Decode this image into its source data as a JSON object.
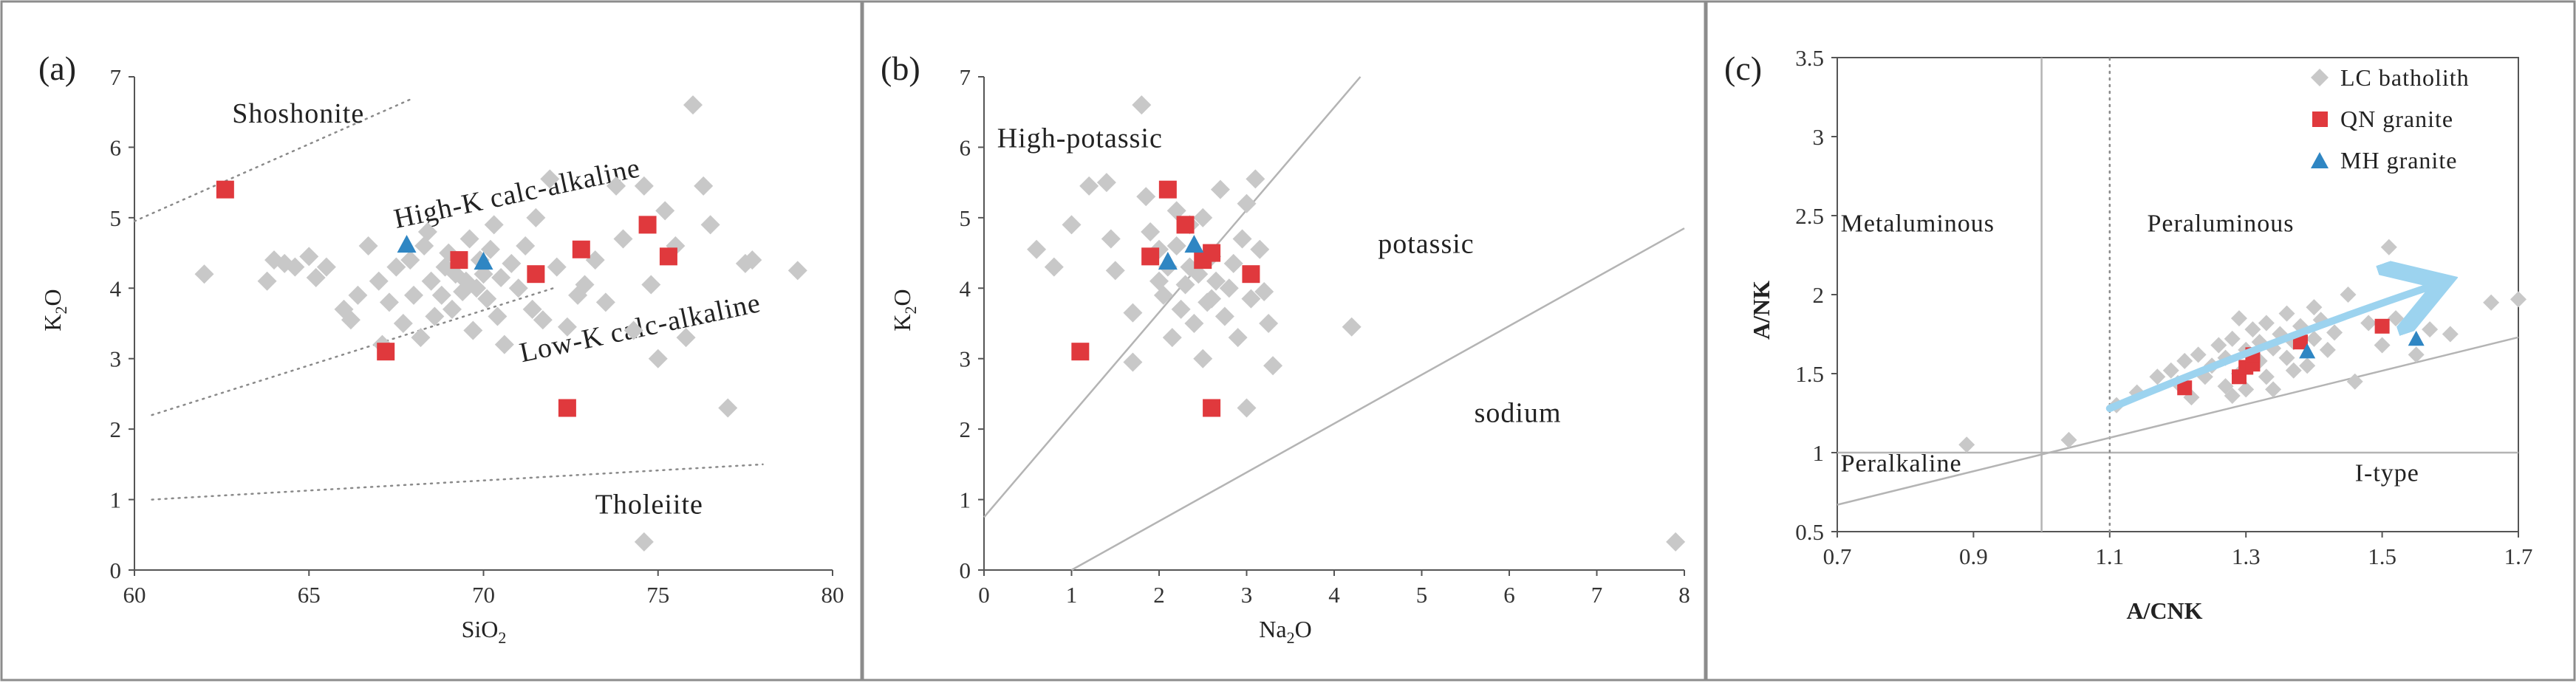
{
  "colors": {
    "lc": "#c8c8c8",
    "qn": "#e0393d",
    "mh": "#2f86c3",
    "arrow": "#9cd3ef",
    "line": "#b4b4b4",
    "frame": "#8c8c8c"
  },
  "chart_data": [
    {
      "type": "scatter",
      "panel": "(a)",
      "xlabel": "SiO",
      "xlabel_sub": "2",
      "ylabel": "K",
      "ylabel_sub": "2",
      "ylabel_tail": "O",
      "xlim": [
        60,
        80
      ],
      "ylim": [
        0,
        7
      ],
      "xticks": [
        60,
        65,
        70,
        75,
        80
      ],
      "yticks": [
        0,
        1,
        2,
        3,
        4,
        5,
        6,
        7
      ],
      "reference_lines": [
        {
          "style": "dotted",
          "points": [
            [
              60,
              4.95
            ],
            [
              68,
              6.7
            ]
          ]
        },
        {
          "style": "dotted",
          "points": [
            [
              60.5,
              2.2
            ],
            [
              72,
              4.0
            ]
          ]
        },
        {
          "style": "dotted",
          "points": [
            [
              60.5,
              1.0
            ],
            [
              78,
              1.5
            ]
          ]
        }
      ],
      "field_labels": [
        {
          "text": "Shoshonite",
          "x": 62.8,
          "y": 6.35,
          "rotate": 0
        },
        {
          "text": "High-K calc-alkaline",
          "x": 67.5,
          "y": 4.85,
          "rotate": -12
        },
        {
          "text": "Low-K calc-alkaline",
          "x": 71.1,
          "y": 2.95,
          "rotate": -12
        },
        {
          "text": "Tholeiite",
          "x": 73.2,
          "y": 0.8,
          "rotate": 0
        }
      ],
      "series": [
        {
          "name": "LC batholith",
          "marker": "diamond",
          "points": [
            [
              62,
              4.2
            ],
            [
              63.8,
              4.1
            ],
            [
              64,
              4.4
            ],
            [
              64.3,
              4.35
            ],
            [
              64.6,
              4.3
            ],
            [
              65,
              4.45
            ],
            [
              65.2,
              4.15
            ],
            [
              65.5,
              4.3
            ],
            [
              66,
              3.7
            ],
            [
              66.2,
              3.55
            ],
            [
              66.4,
              3.9
            ],
            [
              66.7,
              4.6
            ],
            [
              67,
              4.1
            ],
            [
              67.1,
              3.2
            ],
            [
              67.3,
              3.8
            ],
            [
              67.5,
              4.3
            ],
            [
              67.7,
              3.5
            ],
            [
              67.9,
              4.4
            ],
            [
              68,
              3.9
            ],
            [
              68.2,
              3.3
            ],
            [
              68.3,
              4.6
            ],
            [
              68.4,
              4.8
            ],
            [
              68.5,
              4.1
            ],
            [
              68.6,
              3.6
            ],
            [
              68.8,
              3.9
            ],
            [
              68.9,
              4.3
            ],
            [
              69,
              4.5
            ],
            [
              69.1,
              3.7
            ],
            [
              69.2,
              4.2
            ],
            [
              69.4,
              3.95
            ],
            [
              69.5,
              4.1
            ],
            [
              69.6,
              4.7
            ],
            [
              69.7,
              3.4
            ],
            [
              69.8,
              4.0
            ],
            [
              69.9,
              4.4
            ],
            [
              70,
              4.2
            ],
            [
              70.1,
              3.85
            ],
            [
              70.2,
              4.55
            ],
            [
              70.3,
              4.9
            ],
            [
              70.4,
              3.6
            ],
            [
              70.5,
              4.15
            ],
            [
              70.6,
              3.2
            ],
            [
              70.8,
              4.35
            ],
            [
              71,
              4.0
            ],
            [
              71.2,
              4.6
            ],
            [
              71.4,
              3.7
            ],
            [
              71.5,
              5.0
            ],
            [
              71.7,
              3.55
            ],
            [
              71.9,
              5.55
            ],
            [
              72.1,
              4.3
            ],
            [
              72.4,
              3.45
            ],
            [
              72.7,
              3.9
            ],
            [
              72.9,
              4.05
            ],
            [
              73.2,
              4.4
            ],
            [
              73.5,
              3.8
            ],
            [
              73.8,
              5.45
            ],
            [
              74,
              4.7
            ],
            [
              74.3,
              3.4
            ],
            [
              74.6,
              5.45
            ],
            [
              74.8,
              4.05
            ],
            [
              75,
              3.0
            ],
            [
              75.2,
              5.1
            ],
            [
              75.5,
              4.6
            ],
            [
              75.8,
              3.3
            ],
            [
              76,
              6.6
            ],
            [
              76.3,
              5.45
            ],
            [
              76.5,
              4.9
            ],
            [
              77,
              2.3
            ],
            [
              77.5,
              4.35
            ],
            [
              77.7,
              4.4
            ],
            [
              79,
              4.25
            ],
            [
              74.6,
              0.4
            ]
          ]
        },
        {
          "name": "QN granite",
          "marker": "square",
          "points": [
            [
              62.6,
              5.4
            ],
            [
              67.2,
              3.1
            ],
            [
              69.3,
              4.4
            ],
            [
              71.5,
              4.2
            ],
            [
              72.4,
              2.3
            ],
            [
              72.8,
              4.55
            ],
            [
              74.7,
              4.9
            ],
            [
              75.3,
              4.45
            ]
          ]
        },
        {
          "name": "MH granite",
          "marker": "triangle",
          "points": [
            [
              67.8,
              4.62
            ],
            [
              70,
              4.38
            ]
          ]
        }
      ]
    },
    {
      "type": "scatter",
      "panel": "(b)",
      "xlabel": "Na",
      "xlabel_sub": "2",
      "xlabel_tail": "O",
      "ylabel": "K",
      "ylabel_sub": "2",
      "ylabel_tail": "O",
      "xlim": [
        0,
        8
      ],
      "ylim": [
        0,
        7
      ],
      "xticks": [
        0,
        1,
        2,
        3,
        4,
        5,
        6,
        7,
        8
      ],
      "yticks": [
        0,
        1,
        2,
        3,
        4,
        5,
        6,
        7
      ],
      "reference_lines": [
        {
          "style": "solid",
          "points": [
            [
              0,
              0.75
            ],
            [
              4.3,
              7
            ]
          ]
        },
        {
          "style": "solid",
          "points": [
            [
              1,
              0
            ],
            [
              8,
              4.85
            ]
          ]
        }
      ],
      "field_labels": [
        {
          "text": "High-potassic",
          "x": 0.15,
          "y": 6.0,
          "rotate": 0
        },
        {
          "text": "potassic",
          "x": 4.5,
          "y": 4.5,
          "rotate": 0
        },
        {
          "text": "sodium",
          "x": 5.6,
          "y": 2.1,
          "rotate": 0
        }
      ],
      "series": [
        {
          "name": "LC batholith",
          "marker": "diamond",
          "points": [
            [
              0.6,
              4.55
            ],
            [
              0.8,
              4.3
            ],
            [
              1.0,
              4.9
            ],
            [
              1.2,
              5.45
            ],
            [
              1.4,
              5.5
            ],
            [
              1.45,
              4.7
            ],
            [
              1.5,
              4.25
            ],
            [
              1.7,
              3.65
            ],
            [
              1.7,
              2.95
            ],
            [
              1.8,
              6.6
            ],
            [
              1.85,
              5.3
            ],
            [
              1.9,
              4.8
            ],
            [
              2.0,
              4.1
            ],
            [
              2.05,
              3.9
            ],
            [
              2.1,
              4.3
            ],
            [
              2.15,
              3.3
            ],
            [
              2.2,
              4.6
            ],
            [
              2.25,
              3.7
            ],
            [
              2.3,
              4.05
            ],
            [
              2.35,
              4.9
            ],
            [
              2.4,
              3.5
            ],
            [
              2.45,
              4.2
            ],
            [
              2.5,
              5.0
            ],
            [
              2.55,
              3.8
            ],
            [
              2.6,
              4.45
            ],
            [
              2.65,
              4.1
            ],
            [
              2.7,
              5.4
            ],
            [
              2.75,
              3.6
            ],
            [
              2.8,
              4.0
            ],
            [
              2.85,
              4.35
            ],
            [
              2.9,
              3.3
            ],
            [
              2.95,
              4.7
            ],
            [
              3.0,
              5.2
            ],
            [
              3.05,
              3.85
            ],
            [
              3.1,
              5.55
            ],
            [
              3.15,
              4.55
            ],
            [
              3.2,
              3.95
            ],
            [
              3.25,
              3.5
            ],
            [
              3.3,
              2.9
            ],
            [
              3.0,
              2.3
            ],
            [
              2.5,
              3.0
            ],
            [
              2.2,
              5.1
            ],
            [
              2.0,
              4.55
            ],
            [
              2.35,
              4.3
            ],
            [
              2.6,
              3.85
            ],
            [
              4.2,
              3.45
            ],
            [
              7.9,
              0.4
            ]
          ]
        },
        {
          "name": "QN granite",
          "marker": "square",
          "points": [
            [
              1.1,
              3.1
            ],
            [
              1.9,
              4.45
            ],
            [
              2.1,
              5.4
            ],
            [
              2.3,
              4.9
            ],
            [
              2.5,
              4.4
            ],
            [
              2.6,
              4.5
            ],
            [
              2.6,
              2.3
            ],
            [
              3.05,
              4.2
            ]
          ]
        },
        {
          "name": "MH granite",
          "marker": "triangle",
          "points": [
            [
              2.1,
              4.38
            ],
            [
              2.4,
              4.62
            ]
          ]
        }
      ]
    },
    {
      "type": "scatter",
      "panel": "(c)",
      "xlabel": "A/CNK",
      "ylabel": "A/NK",
      "xlim": [
        0.7,
        1.7
      ],
      "ylim": [
        0.5,
        3.5
      ],
      "xticks": [
        "0.7",
        "0.9",
        "1.1",
        "1.3",
        "1.5",
        "1.7"
      ],
      "yticks": [
        "0.5",
        "1",
        "1.5",
        "2",
        "2.5",
        "3",
        "3.5"
      ],
      "reference_lines": [
        {
          "style": "solid",
          "points": [
            [
              0.7,
              1.0
            ],
            [
              1.7,
              1.0
            ]
          ]
        },
        {
          "style": "solid",
          "points": [
            [
              1.0,
              0.5
            ],
            [
              1.0,
              3.5
            ]
          ]
        },
        {
          "style": "dotted",
          "points": [
            [
              1.1,
              0.5
            ],
            [
              1.1,
              3.5
            ]
          ]
        },
        {
          "style": "solid",
          "points": [
            [
              0.7,
              0.67
            ],
            [
              1.7,
              1.73
            ]
          ]
        }
      ],
      "field_labels": [
        {
          "text": "Metaluminous",
          "x": 0.705,
          "y": 2.4,
          "rotate": 0
        },
        {
          "text": "Peraluminous",
          "x": 1.155,
          "y": 2.4,
          "rotate": 0
        },
        {
          "text": "Peralkaline",
          "x": 0.705,
          "y": 0.88,
          "rotate": 0
        },
        {
          "text": "I-type",
          "x": 1.46,
          "y": 0.82,
          "rotate": 0
        }
      ],
      "arrow": {
        "points": [
          [
            1.1,
            1.28
          ],
          [
            1.35,
            1.73
          ],
          [
            1.57,
            2.05
          ]
        ]
      },
      "legend": {
        "position": "top-right",
        "entries": [
          "LC batholith",
          "QN granite",
          "MH granite"
        ]
      },
      "series": [
        {
          "name": "LC batholith",
          "marker": "diamond",
          "points": [
            [
              0.89,
              1.05
            ],
            [
              1.04,
              1.08
            ],
            [
              1.11,
              1.3
            ],
            [
              1.14,
              1.38
            ],
            [
              1.17,
              1.48
            ],
            [
              1.19,
              1.52
            ],
            [
              1.2,
              1.44
            ],
            [
              1.21,
              1.58
            ],
            [
              1.22,
              1.35
            ],
            [
              1.23,
              1.62
            ],
            [
              1.24,
              1.48
            ],
            [
              1.25,
              1.55
            ],
            [
              1.26,
              1.68
            ],
            [
              1.27,
              1.42
            ],
            [
              1.27,
              1.6
            ],
            [
              1.28,
              1.72
            ],
            [
              1.29,
              1.5
            ],
            [
              1.29,
              1.85
            ],
            [
              1.3,
              1.65
            ],
            [
              1.3,
              1.4
            ],
            [
              1.31,
              1.78
            ],
            [
              1.32,
              1.58
            ],
            [
              1.32,
              1.7
            ],
            [
              1.33,
              1.82
            ],
            [
              1.33,
              1.48
            ],
            [
              1.34,
              1.66
            ],
            [
              1.35,
              1.75
            ],
            [
              1.36,
              1.6
            ],
            [
              1.36,
              1.88
            ],
            [
              1.37,
              1.7
            ],
            [
              1.38,
              1.8
            ],
            [
              1.39,
              1.55
            ],
            [
              1.4,
              1.92
            ],
            [
              1.4,
              1.72
            ],
            [
              1.41,
              1.84
            ],
            [
              1.42,
              1.65
            ],
            [
              1.43,
              1.76
            ],
            [
              1.45,
              2.0
            ],
            [
              1.46,
              1.45
            ],
            [
              1.48,
              1.82
            ],
            [
              1.5,
              1.68
            ],
            [
              1.51,
              2.3
            ],
            [
              1.52,
              1.85
            ],
            [
              1.55,
              1.62
            ],
            [
              1.57,
              1.78
            ],
            [
              1.6,
              1.75
            ],
            [
              1.66,
              1.95
            ],
            [
              1.7,
              1.97
            ],
            [
              1.28,
              1.36
            ],
            [
              1.34,
              1.4
            ],
            [
              1.37,
              1.52
            ]
          ]
        },
        {
          "name": "QN granite",
          "marker": "square",
          "points": [
            [
              1.21,
              1.41
            ],
            [
              1.29,
              1.48
            ],
            [
              1.3,
              1.54
            ],
            [
              1.31,
              1.56
            ],
            [
              1.31,
              1.62
            ],
            [
              1.38,
              1.7
            ],
            [
              1.5,
              1.8
            ]
          ]
        },
        {
          "name": "MH granite",
          "marker": "triangle",
          "points": [
            [
              1.39,
              1.64
            ],
            [
              1.55,
              1.72
            ]
          ]
        }
      ]
    }
  ]
}
